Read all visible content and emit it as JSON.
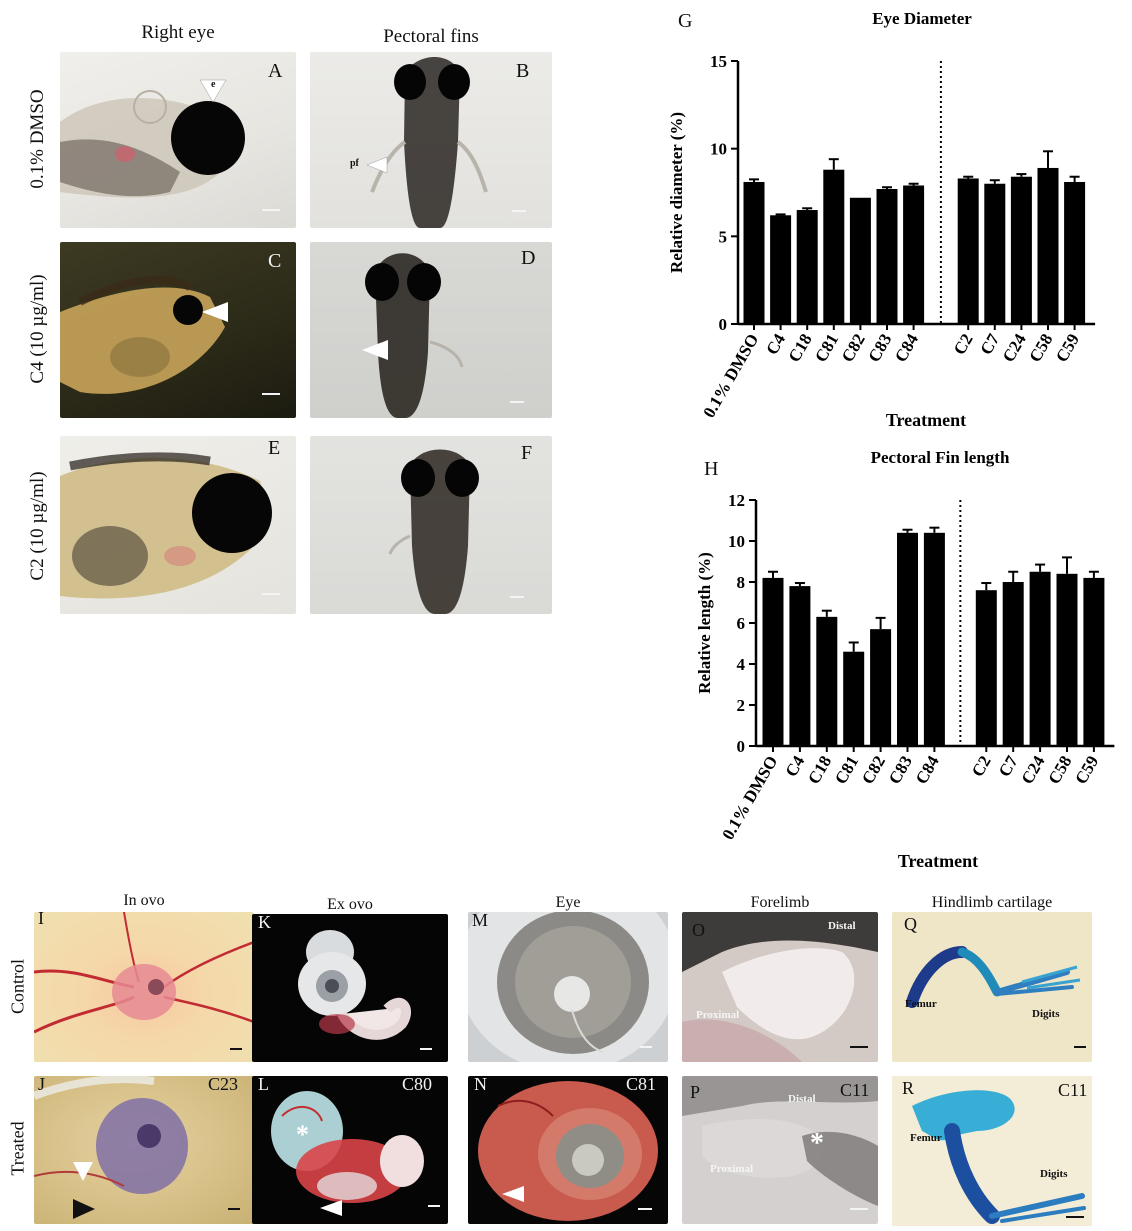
{
  "zebrafish": {
    "col_titles": [
      "Right eye",
      "Pectoral fins"
    ],
    "row_labels": [
      "0.1% DMSO",
      "C4 (10 µg/ml)",
      "C2 (10 µg/ml)"
    ],
    "panel_letters": [
      "A",
      "B",
      "C",
      "D",
      "E",
      "F"
    ],
    "annotations": {
      "eye": "e",
      "fin": "pf"
    }
  },
  "chick": {
    "col_titles": [
      "In ovo",
      "Ex ovo",
      "Eye",
      "Forelimb",
      "Hindlimb cartilage"
    ],
    "row_labels": [
      "Control",
      "Treated"
    ],
    "panel_letters": [
      "I",
      "J",
      "K",
      "L",
      "M",
      "N",
      "O",
      "P",
      "Q",
      "R"
    ],
    "compound_tags": {
      "J": "C23",
      "L": "C80",
      "N": "C81",
      "P": "C11",
      "R": "C11"
    },
    "annotations": {
      "O_distal": "Distal",
      "O_proximal": "Proximal",
      "P_distal": "Distal",
      "P_proximal": "Proximal",
      "Q_femur": "Femur",
      "Q_digits": "Digits",
      "R_femur": "Femur",
      "R_digits": "Digits"
    }
  },
  "chart_data": [
    {
      "panel": "G",
      "type": "bar",
      "title": "Eye Diameter",
      "xlabel": "Treatment",
      "ylabel": "Relative diameter (%)",
      "ylim": [
        0,
        15
      ],
      "yticks": [
        0,
        5,
        10,
        15
      ],
      "categories": [
        "0.1% DMSO",
        "C4",
        "C18",
        "C81",
        "C82",
        "C83",
        "C84",
        "C2",
        "C7",
        "C24",
        "C58",
        "C59"
      ],
      "values": [
        8.1,
        6.2,
        6.5,
        8.8,
        7.2,
        7.7,
        7.9,
        8.3,
        8.0,
        8.4,
        8.9,
        8.1
      ],
      "errors": [
        0.15,
        0.05,
        0.1,
        0.6,
        0.0,
        0.1,
        0.1,
        0.1,
        0.2,
        0.15,
        0.95,
        0.3
      ],
      "divider_after": "C84",
      "bar_color": "#000000"
    },
    {
      "panel": "H",
      "type": "bar",
      "title": "Pectoral Fin length",
      "xlabel": "Treatment",
      "ylabel": "Relative length (%)",
      "ylim": [
        0,
        12
      ],
      "yticks": [
        0,
        2,
        4,
        6,
        8,
        10,
        12
      ],
      "categories": [
        "0.1% DMSO",
        "C4",
        "C18",
        "C81",
        "C82",
        "C83",
        "C84",
        "C2",
        "C7",
        "C24",
        "C58",
        "C59"
      ],
      "values": [
        8.2,
        7.8,
        6.3,
        4.6,
        5.7,
        10.4,
        10.4,
        7.6,
        8.0,
        8.5,
        8.4,
        8.2
      ],
      "errors": [
        0.3,
        0.15,
        0.3,
        0.45,
        0.55,
        0.15,
        0.25,
        0.35,
        0.5,
        0.35,
        0.8,
        0.3
      ],
      "divider_after": "C84",
      "bar_color": "#000000"
    }
  ]
}
